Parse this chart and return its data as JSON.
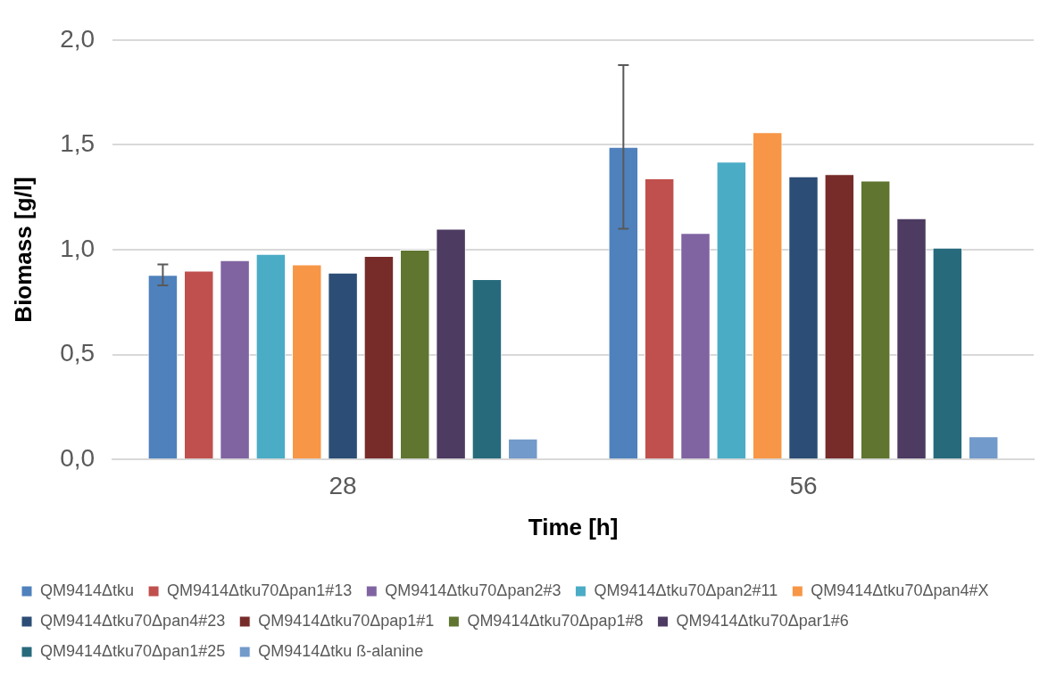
{
  "chart_data": {
    "type": "bar",
    "xlabel": "Time [h]",
    "ylabel": "Biomass [g/l]",
    "categories": [
      "28",
      "56"
    ],
    "series": [
      {
        "name": "QM9414Δtku",
        "color": "#4f81bd",
        "values": [
          0.88,
          1.49
        ],
        "errors": [
          0.05,
          0.39
        ]
      },
      {
        "name": "QM9414Δtku70Δpan1#13",
        "color": "#c0504d",
        "values": [
          0.9,
          1.34
        ]
      },
      {
        "name": "QM9414Δtku70Δpan2#3",
        "color": "#8064a2",
        "values": [
          0.95,
          1.08
        ]
      },
      {
        "name": "QM9414Δtku70Δpan2#11",
        "color": "#4bacc6",
        "values": [
          0.98,
          1.42
        ]
      },
      {
        "name": "QM9414Δtku70Δpan4#X",
        "color": "#f79646",
        "values": [
          0.93,
          1.56
        ]
      },
      {
        "name": "QM9414Δtku70Δpan4#23",
        "color": "#2c4d75",
        "values": [
          0.89,
          1.35
        ]
      },
      {
        "name": "QM9414Δtku70Δpap1#1",
        "color": "#772c2a",
        "values": [
          0.97,
          1.36
        ]
      },
      {
        "name": "QM9414Δtku70Δpap1#8",
        "color": "#5f7530",
        "values": [
          1.0,
          1.33
        ]
      },
      {
        "name": "QM9414Δtku70Δpar1#6",
        "color": "#4d3b62",
        "values": [
          1.1,
          1.15
        ]
      },
      {
        "name": "QM9414Δtku70Δpan1#25",
        "color": "#276a7c",
        "values": [
          0.86,
          1.01
        ]
      },
      {
        "name": "QM9414Δtku ß-alanine",
        "color": "#729aca",
        "values": [
          0.1,
          0.11
        ]
      }
    ],
    "ylim": [
      0,
      2
    ],
    "yticks": [
      {
        "value": 0,
        "label": "0,0"
      },
      {
        "value": 0.5,
        "label": "0,5"
      },
      {
        "value": 1,
        "label": "1,0"
      },
      {
        "value": 1.5,
        "label": "1,5"
      },
      {
        "value": 2,
        "label": "2,0"
      }
    ],
    "grid": "y",
    "legend": "bottom"
  }
}
